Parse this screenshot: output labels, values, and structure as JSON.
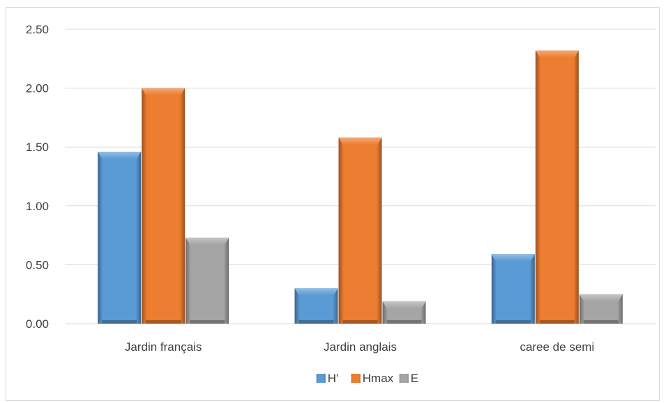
{
  "chart_data": {
    "type": "bar",
    "categories": [
      "Jardin français",
      "Jardin anglais",
      "caree de semi"
    ],
    "series": [
      {
        "name": "H'",
        "values": [
          1.46,
          0.3,
          0.59
        ],
        "color": "#5b9bd5"
      },
      {
        "name": "Hmax",
        "values": [
          2.0,
          1.58,
          2.32
        ],
        "color": "#ed7d31"
      },
      {
        "name": "E",
        "values": [
          0.73,
          0.19,
          0.25
        ],
        "color": "#a5a5a5"
      }
    ],
    "ylim": [
      0,
      2.5
    ],
    "yticks": [
      "0.00",
      "0.50",
      "1.00",
      "1.50",
      "2.00",
      "2.50"
    ],
    "title": "",
    "xlabel": "",
    "ylabel": "",
    "grid": true,
    "legend_position": "bottom"
  }
}
